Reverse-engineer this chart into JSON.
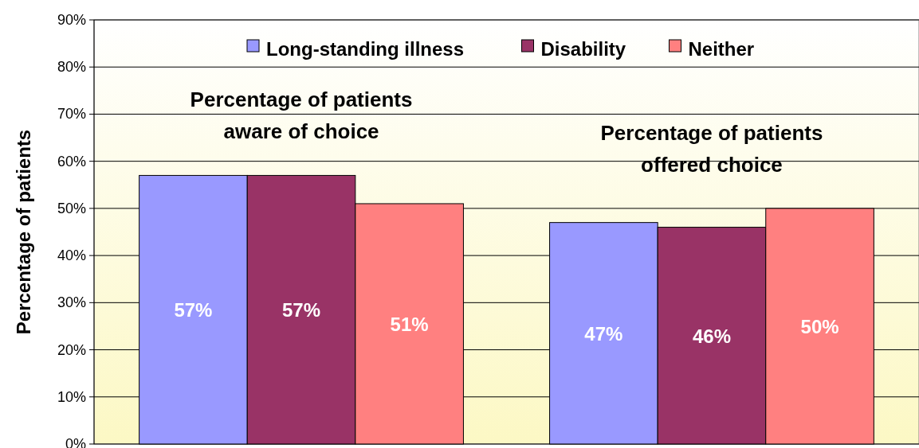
{
  "chart_data": {
    "type": "bar",
    "ylabel": "Percentage of patients",
    "categories": [
      "Percentage of patients aware of choice",
      "Percentage of patients offered choice"
    ],
    "series": [
      {
        "name": "Long-standing illness",
        "color": "#9999ff",
        "values": [
          57,
          47
        ],
        "value_labels": [
          "57%",
          "47%"
        ]
      },
      {
        "name": "Disability",
        "color": "#993366",
        "values": [
          57,
          46
        ],
        "value_labels": [
          "57%",
          "46%"
        ]
      },
      {
        "name": "Neither",
        "color": "#ff8080",
        "values": [
          51,
          50
        ],
        "value_labels": [
          "51%",
          "50%"
        ]
      }
    ],
    "ylim": [
      0,
      90
    ],
    "yticks": [
      {
        "value": 0,
        "label": "0%"
      },
      {
        "value": 10,
        "label": "10%"
      },
      {
        "value": 20,
        "label": "20%"
      },
      {
        "value": 30,
        "label": "30%"
      },
      {
        "value": 40,
        "label": "40%"
      },
      {
        "value": 50,
        "label": "50%"
      },
      {
        "value": 60,
        "label": "60%"
      },
      {
        "value": 70,
        "label": "70%"
      },
      {
        "value": 80,
        "label": "80%"
      },
      {
        "value": 90,
        "label": "90%"
      }
    ],
    "grid": "y",
    "legend": "top"
  }
}
